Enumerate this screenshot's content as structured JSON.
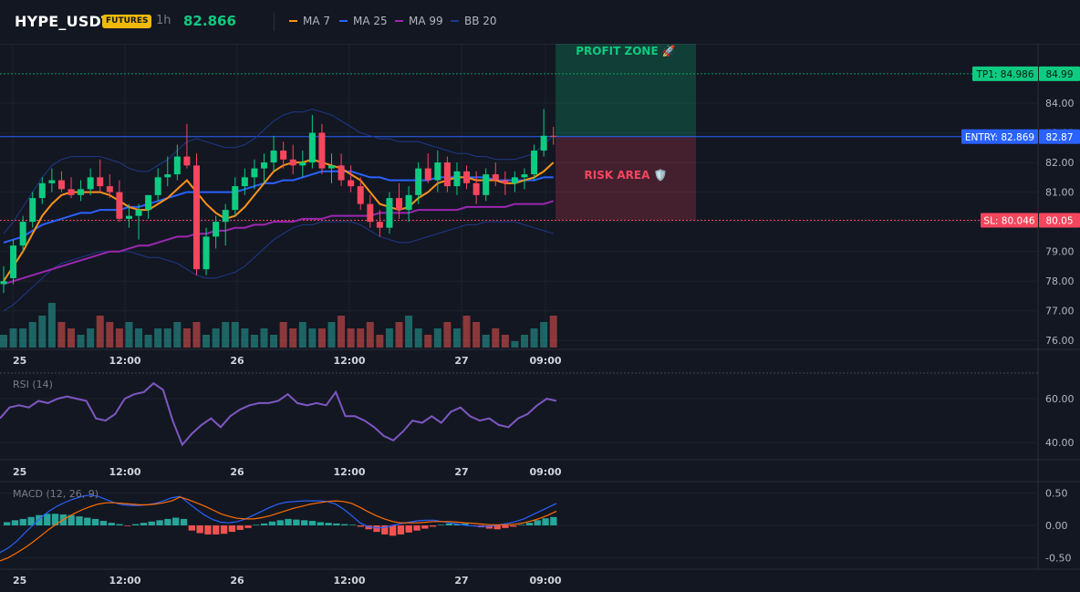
{
  "header": {
    "symbol": "HYPE_USDT",
    "badge": "FUTURES",
    "timeframe": "1h",
    "last_price": "82.866",
    "colors": {
      "badge": "#f0b90b",
      "price": "#0ecb81"
    }
  },
  "legend": [
    {
      "label": "MA 7",
      "color": "#f7931a"
    },
    {
      "label": "MA 25",
      "color": "#2962ff"
    },
    {
      "label": "MA 99",
      "color": "#9c27b0"
    },
    {
      "label": "BB 20",
      "color": "#1e3a8a"
    }
  ],
  "zones": {
    "profit_label": "PROFIT ZONE 🚀",
    "risk_label": "RISK AREA 🛡️",
    "tp_label": "TP1: 84.986",
    "tp_value": 84.99,
    "tp_axis": "84.99",
    "entry_label": "ENTRY: 82.869",
    "entry_value": 82.87,
    "entry_axis": "82.87",
    "sl_label": "SL: 80.046",
    "sl_value": 80.05,
    "sl_axis": "80.05",
    "colors": {
      "tp": "#0ecb81",
      "entry": "#2962ff",
      "sl": "#f6465d"
    }
  },
  "x_axis_labels": [
    "25",
    "12:00",
    "26",
    "12:00",
    "27",
    "09:00"
  ],
  "panels": {
    "rsi_title": "RSI (14)",
    "macd_title": "MACD (12, 26, 9)"
  },
  "chart_data": [
    {
      "type": "candlestick",
      "title": "HYPE_USDT 1h",
      "y_ticks": [
        "84.00",
        "83.00",
        "82.00",
        "81.00",
        "80.00",
        "79.00",
        "78.00",
        "77.00",
        "76.00"
      ],
      "ylim": [
        75.7,
        86.0
      ],
      "candles": [
        {
          "o": 77.9,
          "h": 78.5,
          "l": 77.6,
          "c": 78.0
        },
        {
          "o": 78.1,
          "h": 79.4,
          "l": 77.9,
          "c": 79.2
        },
        {
          "o": 79.2,
          "h": 80.2,
          "l": 79.0,
          "c": 80.0
        },
        {
          "o": 80.0,
          "h": 81.0,
          "l": 79.8,
          "c": 80.8
        },
        {
          "o": 80.8,
          "h": 81.5,
          "l": 80.6,
          "c": 81.3
        },
        {
          "o": 81.3,
          "h": 81.8,
          "l": 81.0,
          "c": 81.4
        },
        {
          "o": 81.4,
          "h": 81.7,
          "l": 81.0,
          "c": 81.1
        },
        {
          "o": 81.1,
          "h": 81.5,
          "l": 80.8,
          "c": 80.9
        },
        {
          "o": 80.9,
          "h": 81.4,
          "l": 80.7,
          "c": 81.1
        },
        {
          "o": 81.1,
          "h": 81.8,
          "l": 80.9,
          "c": 81.5
        },
        {
          "o": 81.5,
          "h": 82.1,
          "l": 81.0,
          "c": 81.2
        },
        {
          "o": 81.2,
          "h": 81.6,
          "l": 80.8,
          "c": 81.0
        },
        {
          "o": 81.0,
          "h": 81.4,
          "l": 80.0,
          "c": 80.1
        },
        {
          "o": 80.1,
          "h": 80.6,
          "l": 79.8,
          "c": 80.2
        },
        {
          "o": 80.2,
          "h": 80.6,
          "l": 79.4,
          "c": 80.4
        },
        {
          "o": 80.4,
          "h": 80.9,
          "l": 80.1,
          "c": 80.9
        },
        {
          "o": 80.9,
          "h": 81.8,
          "l": 80.7,
          "c": 81.5
        },
        {
          "o": 81.5,
          "h": 82.2,
          "l": 81.2,
          "c": 81.6
        },
        {
          "o": 81.6,
          "h": 82.6,
          "l": 81.4,
          "c": 82.2
        },
        {
          "o": 82.2,
          "h": 83.3,
          "l": 81.8,
          "c": 81.9
        },
        {
          "o": 81.9,
          "h": 82.3,
          "l": 78.2,
          "c": 78.4
        },
        {
          "o": 78.4,
          "h": 79.8,
          "l": 78.2,
          "c": 79.5
        },
        {
          "o": 79.5,
          "h": 80.2,
          "l": 79.1,
          "c": 80.0
        },
        {
          "o": 80.0,
          "h": 80.6,
          "l": 79.2,
          "c": 80.4
        },
        {
          "o": 80.4,
          "h": 81.5,
          "l": 80.2,
          "c": 81.2
        },
        {
          "o": 81.2,
          "h": 81.8,
          "l": 80.9,
          "c": 81.5
        },
        {
          "o": 81.5,
          "h": 82.1,
          "l": 81.1,
          "c": 81.8
        },
        {
          "o": 81.8,
          "h": 82.3,
          "l": 81.3,
          "c": 82.0
        },
        {
          "o": 82.0,
          "h": 82.9,
          "l": 81.7,
          "c": 82.4
        },
        {
          "o": 82.4,
          "h": 82.7,
          "l": 81.8,
          "c": 82.1
        },
        {
          "o": 82.1,
          "h": 82.6,
          "l": 81.6,
          "c": 81.9
        },
        {
          "o": 81.9,
          "h": 82.4,
          "l": 81.5,
          "c": 82.0
        },
        {
          "o": 82.0,
          "h": 83.6,
          "l": 81.8,
          "c": 83.0
        },
        {
          "o": 83.0,
          "h": 83.3,
          "l": 81.6,
          "c": 81.8
        },
        {
          "o": 81.8,
          "h": 82.3,
          "l": 81.3,
          "c": 81.9
        },
        {
          "o": 81.9,
          "h": 82.3,
          "l": 81.2,
          "c": 81.4
        },
        {
          "o": 81.4,
          "h": 81.9,
          "l": 81.0,
          "c": 81.2
        },
        {
          "o": 81.2,
          "h": 81.5,
          "l": 80.4,
          "c": 80.6
        },
        {
          "o": 80.6,
          "h": 80.9,
          "l": 79.8,
          "c": 80.0
        },
        {
          "o": 80.0,
          "h": 80.4,
          "l": 79.5,
          "c": 79.8
        },
        {
          "o": 79.8,
          "h": 81.0,
          "l": 79.6,
          "c": 80.8
        },
        {
          "o": 80.8,
          "h": 81.3,
          "l": 80.1,
          "c": 80.4
        },
        {
          "o": 80.4,
          "h": 81.2,
          "l": 80.0,
          "c": 80.9
        },
        {
          "o": 80.9,
          "h": 82.0,
          "l": 80.6,
          "c": 81.8
        },
        {
          "o": 81.8,
          "h": 82.3,
          "l": 81.3,
          "c": 81.4
        },
        {
          "o": 81.4,
          "h": 82.4,
          "l": 81.0,
          "c": 82.0
        },
        {
          "o": 82.0,
          "h": 82.2,
          "l": 81.0,
          "c": 81.2
        },
        {
          "o": 81.2,
          "h": 82.0,
          "l": 80.9,
          "c": 81.7
        },
        {
          "o": 81.7,
          "h": 81.9,
          "l": 81.1,
          "c": 81.3
        },
        {
          "o": 81.3,
          "h": 81.7,
          "l": 80.6,
          "c": 80.9
        },
        {
          "o": 80.9,
          "h": 81.8,
          "l": 80.7,
          "c": 81.6
        },
        {
          "o": 81.6,
          "h": 82.0,
          "l": 81.2,
          "c": 81.4
        },
        {
          "o": 81.4,
          "h": 81.7,
          "l": 80.9,
          "c": 81.3
        },
        {
          "o": 81.3,
          "h": 81.7,
          "l": 81.0,
          "c": 81.5
        },
        {
          "o": 81.5,
          "h": 81.8,
          "l": 81.1,
          "c": 81.6
        },
        {
          "o": 81.6,
          "h": 82.6,
          "l": 81.4,
          "c": 82.4
        },
        {
          "o": 82.4,
          "h": 83.8,
          "l": 82.2,
          "c": 82.9
        },
        {
          "o": 82.9,
          "h": 83.2,
          "l": 82.6,
          "c": 82.87
        }
      ],
      "ma7": [
        78.0,
        78.5,
        79.0,
        79.6,
        80.2,
        80.6,
        80.9,
        81.0,
        81.0,
        81.0,
        81.0,
        80.9,
        80.7,
        80.5,
        80.4,
        80.4,
        80.6,
        80.8,
        81.1,
        81.4,
        81.0,
        80.6,
        80.3,
        80.1,
        80.2,
        80.5,
        80.9,
        81.3,
        81.7,
        81.9,
        82.0,
        82.0,
        82.1,
        82.0,
        81.9,
        81.8,
        81.6,
        81.4,
        81.0,
        80.6,
        80.5,
        80.4,
        80.5,
        80.8,
        81.0,
        81.3,
        81.4,
        81.5,
        81.5,
        81.4,
        81.4,
        81.4,
        81.3,
        81.3,
        81.4,
        81.5,
        81.7,
        82.0
      ],
      "ma25": [
        79.3,
        79.4,
        79.5,
        79.7,
        79.9,
        80.0,
        80.1,
        80.2,
        80.3,
        80.3,
        80.4,
        80.4,
        80.4,
        80.5,
        80.5,
        80.6,
        80.7,
        80.8,
        80.9,
        81.0,
        81.0,
        81.0,
        81.0,
        81.0,
        81.0,
        81.1,
        81.2,
        81.3,
        81.3,
        81.4,
        81.4,
        81.5,
        81.6,
        81.7,
        81.7,
        81.7,
        81.7,
        81.6,
        81.5,
        81.5,
        81.4,
        81.4,
        81.4,
        81.4,
        81.4,
        81.5,
        81.5,
        81.5,
        81.5,
        81.5,
        81.5,
        81.4,
        81.4,
        81.4,
        81.4,
        81.4,
        81.5,
        81.5
      ],
      "ma99": [
        77.9,
        78.0,
        78.1,
        78.2,
        78.3,
        78.4,
        78.5,
        78.6,
        78.7,
        78.8,
        78.9,
        79.0,
        79.0,
        79.1,
        79.2,
        79.2,
        79.3,
        79.4,
        79.5,
        79.5,
        79.6,
        79.6,
        79.7,
        79.7,
        79.8,
        79.8,
        79.9,
        79.9,
        80.0,
        80.0,
        80.0,
        80.1,
        80.1,
        80.1,
        80.2,
        80.2,
        80.2,
        80.2,
        80.2,
        80.3,
        80.3,
        80.3,
        80.3,
        80.4,
        80.4,
        80.4,
        80.4,
        80.4,
        80.5,
        80.5,
        80.5,
        80.5,
        80.5,
        80.6,
        80.6,
        80.6,
        80.6,
        80.7
      ],
      "bb_upper": [
        79.6,
        80.0,
        80.5,
        81.0,
        81.5,
        81.9,
        82.1,
        82.2,
        82.2,
        82.2,
        82.2,
        82.1,
        82.0,
        81.8,
        81.7,
        81.7,
        81.9,
        82.1,
        82.4,
        82.7,
        82.8,
        82.7,
        82.6,
        82.5,
        82.5,
        82.6,
        82.8,
        83.1,
        83.4,
        83.6,
        83.7,
        83.7,
        83.8,
        83.7,
        83.6,
        83.4,
        83.2,
        83.0,
        82.9,
        82.8,
        82.8,
        82.7,
        82.7,
        82.7,
        82.6,
        82.5,
        82.4,
        82.3,
        82.3,
        82.2,
        82.2,
        82.1,
        82.1,
        82.1,
        82.2,
        82.3,
        82.6,
        82.9
      ],
      "bb_lower": [
        77.0,
        77.2,
        77.5,
        77.8,
        78.1,
        78.4,
        78.6,
        78.7,
        78.8,
        78.9,
        79.0,
        79.0,
        79.0,
        79.0,
        78.9,
        78.8,
        78.8,
        78.7,
        78.6,
        78.4,
        78.2,
        78.1,
        78.1,
        78.2,
        78.3,
        78.5,
        78.8,
        79.1,
        79.4,
        79.6,
        79.8,
        79.9,
        79.9,
        80.0,
        80.0,
        80.0,
        80.0,
        79.9,
        79.7,
        79.5,
        79.4,
        79.3,
        79.3,
        79.4,
        79.5,
        79.6,
        79.7,
        79.8,
        79.9,
        79.9,
        80.0,
        80.0,
        80.0,
        80.0,
        79.9,
        79.8,
        79.7,
        79.6
      ],
      "volume": [
        2,
        3,
        3,
        4,
        5,
        7,
        4,
        3,
        2,
        3,
        5,
        4,
        3,
        4,
        3,
        2,
        3,
        3,
        4,
        3,
        4,
        2,
        3,
        4,
        4,
        3,
        2,
        3,
        2,
        4,
        3,
        4,
        3,
        3,
        4,
        5,
        3,
        3,
        4,
        2,
        3,
        4,
        5,
        3,
        2,
        3,
        4,
        3,
        5,
        4,
        2,
        3,
        2,
        1,
        2,
        3,
        4,
        5
      ]
    },
    {
      "type": "line",
      "title": "RSI (14)",
      "y_ticks": [
        "60.00",
        "40.00"
      ],
      "ylim": [
        33,
        70
      ],
      "values": [
        51,
        56,
        57,
        56,
        59,
        58,
        60,
        61,
        60,
        59,
        51,
        50,
        53,
        60,
        62,
        63,
        67,
        64,
        50,
        39,
        44,
        48,
        51,
        47,
        52,
        55,
        57,
        58,
        58,
        59,
        62,
        58,
        57,
        58,
        57,
        63,
        52,
        52,
        50,
        47,
        43,
        41,
        45,
        50,
        49,
        52,
        49,
        54,
        56,
        52,
        50,
        51,
        48,
        47,
        51,
        53,
        57,
        60,
        59
      ]
    },
    {
      "type": "bar+line",
      "title": "MACD (12, 26, 9)",
      "y_ticks": [
        "0.50",
        "0.00",
        "-0.50"
      ],
      "ylim": [
        -0.65,
        0.65
      ],
      "histogram": [
        0.05,
        0.08,
        0.1,
        0.13,
        0.16,
        0.18,
        0.18,
        0.17,
        0.16,
        0.14,
        0.12,
        0.1,
        0.07,
        0.04,
        0.02,
        -0.01,
        0.02,
        0.04,
        0.06,
        0.08,
        0.1,
        0.12,
        0.1,
        -0.08,
        -0.12,
        -0.14,
        -0.14,
        -0.13,
        -0.1,
        -0.07,
        -0.04,
        0.01,
        0.03,
        0.06,
        0.08,
        0.1,
        0.09,
        0.08,
        0.07,
        0.05,
        0.04,
        0.03,
        0.02,
        0.01,
        -0.02,
        -0.06,
        -0.1,
        -0.14,
        -0.16,
        -0.14,
        -0.11,
        -0.08,
        -0.05,
        -0.02,
        0.01,
        0.03,
        0.02,
        0.03,
        -0.01,
        -0.03,
        -0.05,
        -0.06,
        -0.04,
        -0.02,
        0.01,
        0.04,
        0.08,
        0.11,
        0.13
      ],
      "macd": [
        -0.42,
        -0.35,
        -0.25,
        -0.12,
        0.0,
        0.12,
        0.22,
        0.3,
        0.36,
        0.41,
        0.45,
        0.47,
        0.45,
        0.4,
        0.35,
        0.32,
        0.31,
        0.31,
        0.32,
        0.34,
        0.38,
        0.43,
        0.45,
        0.35,
        0.25,
        0.16,
        0.09,
        0.05,
        0.04,
        0.06,
        0.1,
        0.16,
        0.22,
        0.28,
        0.33,
        0.36,
        0.37,
        0.38,
        0.38,
        0.38,
        0.37,
        0.33,
        0.25,
        0.15,
        0.04,
        -0.02,
        -0.04,
        -0.03,
        0.0,
        0.03,
        0.05,
        0.07,
        0.08,
        0.08,
        0.06,
        0.04,
        0.02,
        0.0,
        -0.01,
        -0.02,
        -0.01,
        0.01,
        0.03,
        0.06,
        0.1,
        0.16,
        0.22,
        0.28,
        0.34
      ],
      "signal": [
        -0.55,
        -0.5,
        -0.43,
        -0.35,
        -0.26,
        -0.16,
        -0.06,
        0.03,
        0.11,
        0.18,
        0.24,
        0.29,
        0.33,
        0.35,
        0.35,
        0.34,
        0.33,
        0.32,
        0.32,
        0.33,
        0.35,
        0.38,
        0.44,
        0.4,
        0.35,
        0.3,
        0.24,
        0.18,
        0.14,
        0.11,
        0.1,
        0.1,
        0.12,
        0.15,
        0.19,
        0.23,
        0.27,
        0.3,
        0.33,
        0.35,
        0.37,
        0.38,
        0.37,
        0.34,
        0.28,
        0.21,
        0.15,
        0.1,
        0.06,
        0.04,
        0.04,
        0.04,
        0.05,
        0.06,
        0.06,
        0.06,
        0.05,
        0.04,
        0.03,
        0.02,
        0.01,
        0.01,
        0.01,
        0.02,
        0.04,
        0.07,
        0.11,
        0.16,
        0.22
      ]
    }
  ]
}
